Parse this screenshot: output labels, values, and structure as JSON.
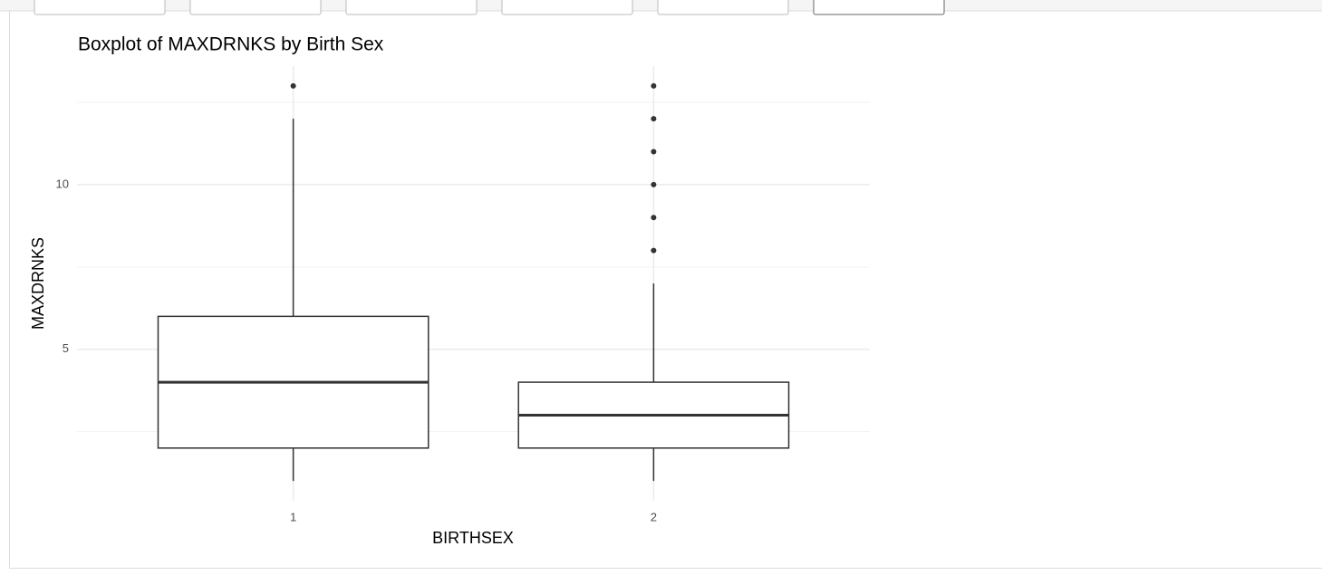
{
  "chart_data": {
    "type": "boxplot",
    "title": "Boxplot of MAXDRNKS by Birth Sex",
    "x_label": "BIRTHSEX",
    "y_label": "MAXDRNKS",
    "categories": [
      "1",
      "2"
    ],
    "boxes": [
      {
        "min": 1,
        "q1": 2,
        "median": 4,
        "q3": 6,
        "max": 12,
        "outliers": [
          13
        ]
      },
      {
        "min": 1,
        "q1": 2,
        "median": 3,
        "q3": 4,
        "max": 7,
        "outliers": [
          8,
          9,
          10,
          11,
          12,
          13
        ]
      }
    ],
    "ylim": [
      0.4,
      13.6
    ],
    "yticks": [
      5,
      10
    ],
    "minor_yticks": [
      2.5,
      7.5,
      12.5
    ],
    "grid": true,
    "color": "#333333",
    "box_fill": "#ffffff"
  }
}
